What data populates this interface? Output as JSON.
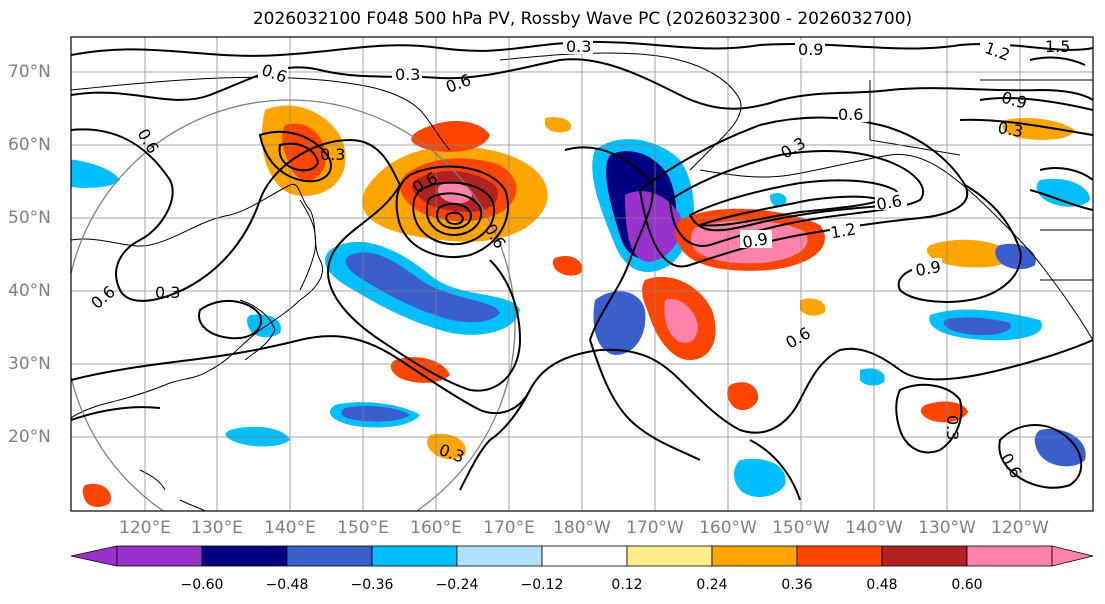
{
  "title": "2026032100 F048 500 hPa PV, Rossby Wave PC (2026032300 - 2026032700)",
  "lat_labels": [
    "70°N",
    "60°N",
    "50°N",
    "40°N",
    "30°N",
    "20°N"
  ],
  "lon_labels": [
    "120°E",
    "130°E",
    "140°E",
    "150°E",
    "160°E",
    "170°E",
    "180°W",
    "170°W",
    "160°W",
    "150°W",
    "140°W",
    "130°W",
    "120°W"
  ],
  "colorbar": {
    "ticks": [
      "−0.60",
      "−0.48",
      "−0.36",
      "−0.24",
      "−0.12",
      "0.12",
      "0.24",
      "0.36",
      "0.48",
      "0.60"
    ],
    "colors": [
      "#9932cc",
      "#000080",
      "#3a5fcd",
      "#00bfff",
      "#b0e2ff",
      "#ffffff",
      "#ffec8b",
      "#ffa500",
      "#ff4500",
      "#b22222",
      "#ff82ab"
    ]
  },
  "contour_labels": [
    "0.3",
    "0.6",
    "0.9",
    "1.2",
    "1.5",
    "0.3",
    "0.6",
    "0.9",
    "0.6",
    "0.3",
    "0.6",
    "0.3",
    "0.6",
    "0.6",
    "0.3",
    "0.6",
    "0.9",
    "1.2",
    "0.9",
    "0.6",
    "0.3",
    "0.6",
    "0.3",
    "0.3",
    "0.6"
  ]
}
